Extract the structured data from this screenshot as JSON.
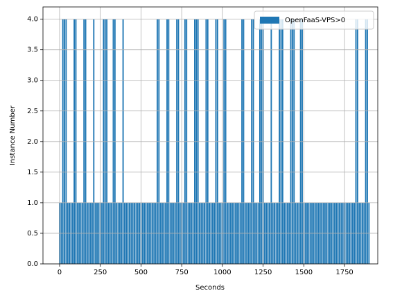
{
  "chart_data": {
    "type": "bar",
    "x_label": "Seconds",
    "y_label": "Instance Number",
    "series": [
      {
        "name": "OpenFaaS-VPS>0",
        "color": "#1f77b4",
        "x": [
          0,
          10,
          20,
          30,
          40,
          50,
          60,
          70,
          80,
          90,
          100,
          110,
          120,
          130,
          140,
          150,
          160,
          170,
          180,
          190,
          200,
          210,
          220,
          230,
          240,
          250,
          260,
          270,
          280,
          290,
          300,
          310,
          320,
          330,
          340,
          350,
          360,
          370,
          380,
          390,
          400,
          410,
          420,
          430,
          440,
          450,
          460,
          470,
          480,
          490,
          500,
          510,
          520,
          530,
          540,
          550,
          560,
          570,
          580,
          590,
          600,
          610,
          620,
          630,
          640,
          650,
          660,
          670,
          680,
          690,
          700,
          710,
          720,
          730,
          740,
          750,
          760,
          770,
          780,
          790,
          800,
          810,
          820,
          830,
          840,
          850,
          860,
          870,
          880,
          890,
          900,
          910,
          920,
          930,
          940,
          950,
          960,
          970,
          980,
          990,
          1000,
          1010,
          1020,
          1030,
          1040,
          1050,
          1060,
          1070,
          1080,
          1090,
          1100,
          1110,
          1120,
          1130,
          1140,
          1150,
          1160,
          1170,
          1180,
          1190,
          1200,
          1210,
          1220,
          1230,
          1240,
          1250,
          1260,
          1270,
          1280,
          1290,
          1300,
          1310,
          1320,
          1330,
          1340,
          1350,
          1360,
          1370,
          1380,
          1390,
          1400,
          1410,
          1420,
          1430,
          1440,
          1450,
          1460,
          1470,
          1480,
          1490,
          1500,
          1510,
          1520,
          1530,
          1540,
          1550,
          1560,
          1570,
          1580,
          1590,
          1600,
          1610,
          1620,
          1630,
          1640,
          1650,
          1660,
          1670,
          1680,
          1690,
          1700,
          1710,
          1720,
          1730,
          1740,
          1750,
          1760,
          1770,
          1780,
          1790,
          1800,
          1810,
          1820,
          1830,
          1840,
          1850,
          1860,
          1870,
          1880,
          1890,
          1900
        ],
        "values": [
          1,
          1,
          4,
          4,
          4,
          1,
          1,
          1,
          1,
          4,
          4,
          1,
          1,
          1,
          1,
          4,
          4,
          1,
          1,
          1,
          1,
          4,
          1,
          1,
          1,
          1,
          1,
          4,
          4,
          4,
          1,
          1,
          1,
          4,
          4,
          1,
          1,
          1,
          1,
          4,
          1,
          1,
          1,
          1,
          1,
          1,
          1,
          1,
          1,
          1,
          1,
          1,
          1,
          1,
          1,
          1,
          1,
          1,
          1,
          1,
          4,
          4,
          1,
          1,
          1,
          1,
          4,
          4,
          1,
          1,
          1,
          1,
          4,
          4,
          1,
          1,
          1,
          4,
          4,
          1,
          1,
          1,
          1,
          4,
          4,
          4,
          1,
          1,
          1,
          1,
          4,
          4,
          1,
          1,
          1,
          1,
          4,
          4,
          1,
          1,
          1,
          4,
          4,
          1,
          1,
          1,
          1,
          1,
          1,
          1,
          1,
          1,
          4,
          4,
          1,
          1,
          1,
          1,
          4,
          4,
          1,
          1,
          1,
          4,
          4,
          4,
          1,
          1,
          1,
          1,
          4,
          1,
          1,
          1,
          1,
          4,
          4,
          4,
          1,
          1,
          1,
          1,
          4,
          4,
          4,
          1,
          1,
          1,
          4,
          4,
          1,
          1,
          1,
          1,
          1,
          1,
          1,
          1,
          1,
          1,
          1,
          1,
          1,
          1,
          1,
          1,
          1,
          1,
          1,
          1,
          1,
          1,
          1,
          1,
          1,
          1,
          1,
          1,
          1,
          1,
          1,
          1,
          4,
          4,
          1,
          1,
          1,
          1,
          4,
          4,
          1
        ]
      }
    ],
    "xlim": [
      -102,
      1954
    ],
    "xticks": [
      0,
      250,
      500,
      750,
      1000,
      1250,
      1500,
      1750
    ],
    "ylim": [
      0,
      4.2
    ],
    "yticks": [
      {
        "value": 0,
        "label": "0.0"
      },
      {
        "value": 0.5,
        "label": "0.5"
      },
      {
        "value": 1,
        "label": "1.0"
      },
      {
        "value": 1.5,
        "label": "1.5"
      },
      {
        "value": 2,
        "label": "2.0"
      },
      {
        "value": 2.5,
        "label": "2.5"
      },
      {
        "value": 3,
        "label": "3.0"
      },
      {
        "value": 3.5,
        "label": "3.5"
      },
      {
        "value": 4,
        "label": "4.0"
      }
    ],
    "grid": true,
    "legend": "upper right"
  }
}
